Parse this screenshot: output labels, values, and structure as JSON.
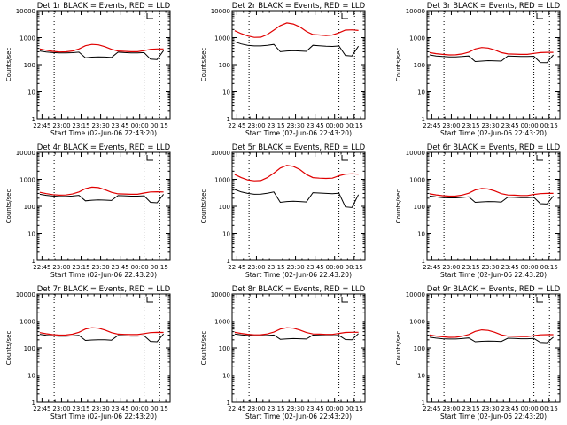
{
  "chart_data": [
    {
      "type": "line",
      "title": "Det 1r BLACK = Events, RED = LLD",
      "ylabel": "Counts/sec",
      "xlabel": "Start Time (02-Jun-06 22:43:20)",
      "xticks": [
        "22:45",
        "23:00",
        "23:15",
        "23:30",
        "23:45",
        "00:00",
        "00:15"
      ],
      "yticks": [
        "1",
        "10",
        "100",
        "1000",
        "10000"
      ],
      "x_minutes": [
        0,
        5,
        10,
        15,
        20,
        25,
        30,
        35,
        40,
        45,
        50,
        55,
        60,
        65,
        70,
        75,
        80,
        85,
        90,
        95
      ],
      "ylim": [
        1,
        10000
      ],
      "markers_minutes": [
        11,
        80,
        92
      ],
      "series": [
        {
          "name": "Events",
          "color": "#000000",
          "values": [
            320,
            295,
            280,
            270,
            270,
            278,
            290,
            180,
            190,
            195,
            192,
            185,
            290,
            280,
            272,
            272,
            280,
            160,
            155,
            330
          ]
        },
        {
          "name": "LLD",
          "color": "#e00000",
          "values": [
            380,
            340,
            310,
            295,
            298,
            320,
            380,
            500,
            560,
            540,
            460,
            370,
            320,
            310,
            300,
            300,
            330,
            370,
            380,
            380
          ]
        }
      ]
    },
    {
      "type": "line",
      "title": "Det 2r BLACK = Events, RED = LLD",
      "ylabel": "Counts/sec",
      "xlabel": "Start Time (02-Jun-06 22:43:20)",
      "xticks": [
        "22:45",
        "23:00",
        "23:15",
        "23:30",
        "23:45",
        "00:00",
        "00:15"
      ],
      "yticks": [
        "1",
        "10",
        "100",
        "1000",
        "10000"
      ],
      "x_minutes": [
        0,
        5,
        10,
        15,
        20,
        25,
        30,
        35,
        40,
        45,
        50,
        55,
        60,
        65,
        70,
        75,
        80,
        85,
        90,
        95
      ],
      "ylim": [
        1,
        10000
      ],
      "markers_minutes": [
        11,
        80,
        92
      ],
      "series": [
        {
          "name": "Events",
          "color": "#000000",
          "values": [
            700,
            580,
            520,
            490,
            490,
            520,
            560,
            300,
            320,
            330,
            320,
            310,
            520,
            500,
            480,
            470,
            490,
            220,
            210,
            480
          ]
        },
        {
          "name": "LLD",
          "color": "#e00000",
          "values": [
            1800,
            1400,
            1150,
            1020,
            1040,
            1300,
            1900,
            2800,
            3500,
            3200,
            2500,
            1700,
            1300,
            1250,
            1200,
            1250,
            1500,
            1900,
            1950,
            1850
          ]
        }
      ]
    },
    {
      "type": "line",
      "title": "Det 3r BLACK = Events, RED = LLD",
      "ylabel": "Counts/sec",
      "xlabel": "Start Time (02-Jun-06 22:43:20)",
      "xticks": [
        "22:45",
        "23:00",
        "23:15",
        "23:30",
        "23:45",
        "00:00",
        "00:15"
      ],
      "yticks": [
        "1",
        "10",
        "100",
        "1000",
        "10000"
      ],
      "x_minutes": [
        0,
        5,
        10,
        15,
        20,
        25,
        30,
        35,
        40,
        45,
        50,
        55,
        60,
        65,
        70,
        75,
        80,
        85,
        90,
        95
      ],
      "ylim": [
        1,
        10000
      ],
      "markers_minutes": [
        11,
        80,
        92
      ],
      "series": [
        {
          "name": "Events",
          "color": "#000000",
          "values": [
            230,
            210,
            200,
            195,
            195,
            200,
            210,
            130,
            135,
            140,
            138,
            135,
            210,
            205,
            200,
            200,
            205,
            120,
            118,
            230
          ]
        },
        {
          "name": "LLD",
          "color": "#e00000",
          "values": [
            280,
            255,
            240,
            230,
            232,
            250,
            290,
            380,
            430,
            410,
            350,
            280,
            250,
            245,
            240,
            240,
            260,
            280,
            285,
            285
          ]
        }
      ]
    },
    {
      "type": "line",
      "title": "Det 4r BLACK = Events, RED = LLD",
      "ylabel": "Counts/sec",
      "xlabel": "Start Time (02-Jun-06 22:43:20)",
      "xticks": [
        "22:45",
        "23:00",
        "23:15",
        "23:30",
        "23:45",
        "00:00",
        "00:15"
      ],
      "yticks": [
        "1",
        "10",
        "100",
        "1000",
        "10000"
      ],
      "x_minutes": [
        0,
        5,
        10,
        15,
        20,
        25,
        30,
        35,
        40,
        45,
        50,
        55,
        60,
        65,
        70,
        75,
        80,
        85,
        90,
        95
      ],
      "ylim": [
        1,
        10000
      ],
      "markers_minutes": [
        11,
        80,
        92
      ],
      "series": [
        {
          "name": "Events",
          "color": "#000000",
          "values": [
            280,
            255,
            240,
            232,
            232,
            240,
            255,
            160,
            168,
            172,
            170,
            165,
            250,
            245,
            238,
            238,
            245,
            140,
            135,
            280
          ]
        },
        {
          "name": "LLD",
          "color": "#e00000",
          "values": [
            330,
            295,
            270,
            258,
            262,
            285,
            340,
            450,
            510,
            490,
            410,
            330,
            290,
            285,
            280,
            280,
            310,
            340,
            345,
            340
          ]
        }
      ]
    },
    {
      "type": "line",
      "title": "Det 5r BLACK = Events, RED = LLD",
      "ylabel": "Counts/sec",
      "xlabel": "Start Time (02-Jun-06 22:43:20)",
      "xticks": [
        "22:45",
        "23:00",
        "23:15",
        "23:30",
        "23:45",
        "00:00",
        "00:15"
      ],
      "yticks": [
        "1",
        "10",
        "100",
        "1000",
        "10000"
      ],
      "x_minutes": [
        0,
        5,
        10,
        15,
        20,
        25,
        30,
        35,
        40,
        45,
        50,
        55,
        60,
        65,
        70,
        75,
        80,
        85,
        90,
        95
      ],
      "ylim": [
        1,
        10000
      ],
      "markers_minutes": [
        11,
        80,
        92
      ],
      "series": [
        {
          "name": "Events",
          "color": "#000000",
          "values": [
            420,
            340,
            300,
            280,
            282,
            305,
            340,
            140,
            150,
            155,
            150,
            145,
            320,
            310,
            300,
            295,
            305,
            95,
            90,
            270
          ]
        },
        {
          "name": "LLD",
          "color": "#e00000",
          "values": [
            1500,
            1150,
            950,
            880,
            900,
            1150,
            1700,
            2600,
            3300,
            3000,
            2300,
            1500,
            1150,
            1100,
            1080,
            1100,
            1350,
            1550,
            1600,
            1550
          ]
        }
      ]
    },
    {
      "type": "line",
      "title": "Det 6r BLACK = Events, RED = LLD",
      "ylabel": "Counts/sec",
      "xlabel": "Start Time (02-Jun-06 22:43:20)",
      "xticks": [
        "22:45",
        "23:00",
        "23:15",
        "23:30",
        "23:45",
        "00:00",
        "00:15"
      ],
      "yticks": [
        "1",
        "10",
        "100",
        "1000",
        "10000"
      ],
      "x_minutes": [
        0,
        5,
        10,
        15,
        20,
        25,
        30,
        35,
        40,
        45,
        50,
        55,
        60,
        65,
        70,
        75,
        80,
        85,
        90,
        95
      ],
      "ylim": [
        1,
        10000
      ],
      "markers_minutes": [
        11,
        80,
        92
      ],
      "series": [
        {
          "name": "Events",
          "color": "#000000",
          "values": [
            240,
            222,
            210,
            205,
            205,
            212,
            225,
            140,
            146,
            150,
            148,
            143,
            220,
            215,
            210,
            210,
            215,
            125,
            122,
            240
          ]
        },
        {
          "name": "LLD",
          "color": "#e00000",
          "values": [
            290,
            265,
            248,
            238,
            240,
            260,
            305,
            400,
            455,
            435,
            370,
            295,
            262,
            258,
            252,
            252,
            275,
            295,
            300,
            300
          ]
        }
      ]
    },
    {
      "type": "line",
      "title": "Det 7r BLACK = Events, RED = LLD",
      "ylabel": "Counts/sec",
      "xlabel": "Start Time (02-Jun-06 22:43:20)",
      "xticks": [
        "22:45",
        "23:00",
        "23:15",
        "23:30",
        "23:45",
        "00:00",
        "00:15"
      ],
      "yticks": [
        "1",
        "10",
        "100",
        "1000",
        "10000"
      ],
      "x_minutes": [
        0,
        5,
        10,
        15,
        20,
        25,
        30,
        35,
        40,
        45,
        50,
        55,
        60,
        65,
        70,
        75,
        80,
        85,
        90,
        95
      ],
      "ylim": [
        1,
        10000
      ],
      "markers_minutes": [
        11,
        80,
        92
      ],
      "series": [
        {
          "name": "Events",
          "color": "#000000",
          "values": [
            320,
            295,
            280,
            272,
            272,
            280,
            292,
            190,
            198,
            202,
            200,
            195,
            290,
            283,
            276,
            276,
            283,
            175,
            170,
            330
          ]
        },
        {
          "name": "LLD",
          "color": "#e00000",
          "values": [
            370,
            335,
            310,
            298,
            300,
            322,
            380,
            500,
            560,
            540,
            460,
            370,
            325,
            318,
            312,
            312,
            340,
            370,
            378,
            375
          ]
        }
      ]
    },
    {
      "type": "line",
      "title": "Det 8r BLACK = Events, RED = LLD",
      "ylabel": "Counts/sec",
      "xlabel": "Start Time (02-Jun-06 22:43:20)",
      "xticks": [
        "22:45",
        "23:00",
        "23:15",
        "23:30",
        "23:45",
        "00:00",
        "00:15"
      ],
      "yticks": [
        "1",
        "10",
        "100",
        "1000",
        "10000"
      ],
      "x_minutes": [
        0,
        5,
        10,
        15,
        20,
        25,
        30,
        35,
        40,
        45,
        50,
        55,
        60,
        65,
        70,
        75,
        80,
        85,
        90,
        95
      ],
      "ylim": [
        1,
        10000
      ],
      "markers_minutes": [
        11,
        80,
        92
      ],
      "series": [
        {
          "name": "Events",
          "color": "#000000",
          "values": [
            330,
            305,
            290,
            282,
            282,
            290,
            302,
            210,
            218,
            222,
            220,
            215,
            298,
            292,
            286,
            286,
            292,
            205,
            200,
            340
          ]
        },
        {
          "name": "LLD",
          "color": "#e00000",
          "values": [
            380,
            345,
            320,
            306,
            308,
            330,
            385,
            500,
            560,
            540,
            460,
            372,
            330,
            324,
            318,
            318,
            345,
            375,
            380,
            380
          ]
        }
      ]
    },
    {
      "type": "line",
      "title": "Det 9r BLACK = Events, RED = LLD",
      "ylabel": "Counts/sec",
      "xlabel": "Start Time (02-Jun-06 22:43:20)",
      "xticks": [
        "22:45",
        "23:00",
        "23:15",
        "23:30",
        "23:45",
        "00:00",
        "00:15"
      ],
      "yticks": [
        "1",
        "10",
        "100",
        "1000",
        "10000"
      ],
      "x_minutes": [
        0,
        5,
        10,
        15,
        20,
        25,
        30,
        35,
        40,
        45,
        50,
        55,
        60,
        65,
        70,
        75,
        80,
        85,
        90,
        95
      ],
      "ylim": [
        1,
        10000
      ],
      "markers_minutes": [
        11,
        80,
        92
      ],
      "series": [
        {
          "name": "Events",
          "color": "#000000",
          "values": [
            250,
            232,
            220,
            214,
            214,
            222,
            235,
            170,
            176,
            180,
            178,
            173,
            230,
            225,
            220,
            220,
            226,
            160,
            156,
            250
          ]
        },
        {
          "name": "LLD",
          "color": "#e00000",
          "values": [
            300,
            275,
            258,
            248,
            250,
            270,
            315,
            410,
            465,
            445,
            380,
            305,
            272,
            268,
            262,
            262,
            285,
            305,
            310,
            310
          ]
        }
      ]
    }
  ]
}
